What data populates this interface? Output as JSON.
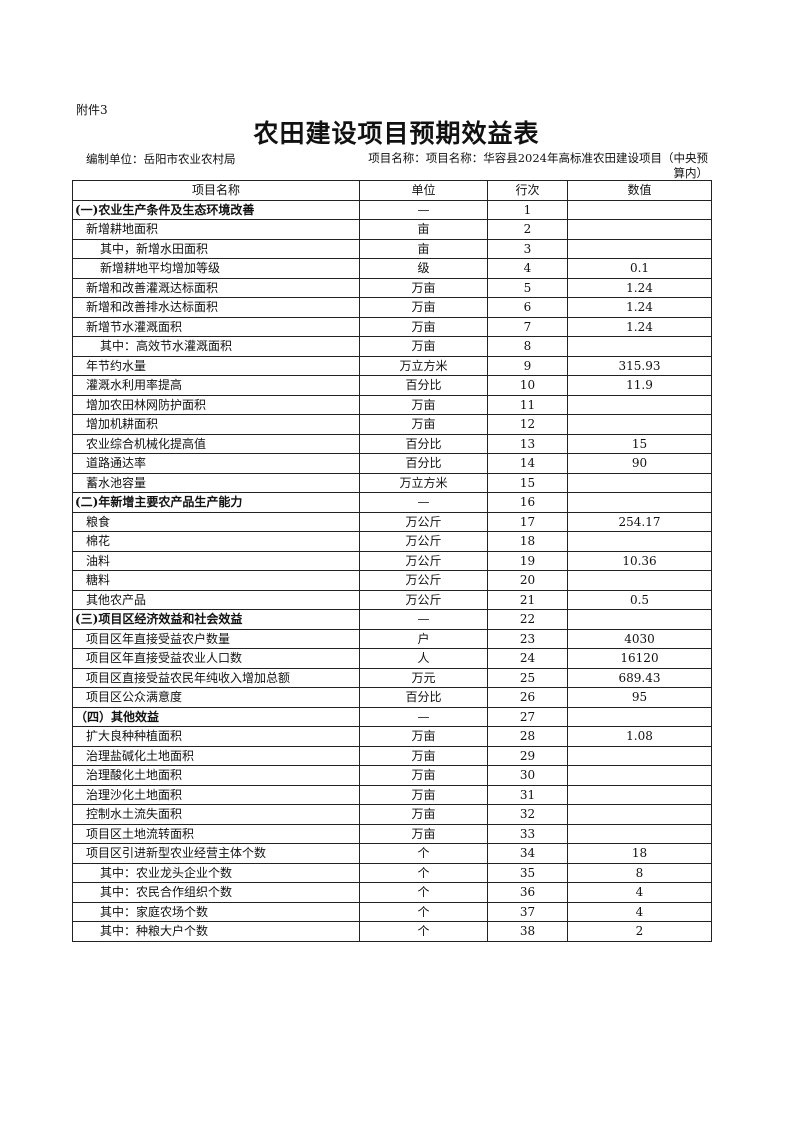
{
  "attachment": "附件3",
  "title": "农田建设项目预期效益表",
  "compiling_unit": "编制单位：岳阳市农业农村局",
  "project_name": "项目名称：项目名称：华容县2024年高标准农田建设项目（中央预算内）",
  "columns": [
    "项目名称",
    "单位",
    "行次",
    "数值"
  ],
  "rows": [
    {
      "name": "(一)农业生产条件及生态环境改善",
      "unit": "—",
      "no": "1",
      "value": "",
      "level": 0
    },
    {
      "name": "新增耕地面积",
      "unit": "亩",
      "no": "2",
      "value": "",
      "level": 1
    },
    {
      "name": "其中，新增水田面积",
      "unit": "亩",
      "no": "3",
      "value": "",
      "level": 2
    },
    {
      "name": "新增耕地平均增加等级",
      "unit": "级",
      "no": "4",
      "value": "0.1",
      "level": 2
    },
    {
      "name": "新增和改善灌溉达标面积",
      "unit": "万亩",
      "no": "5",
      "value": "1.24",
      "level": 1
    },
    {
      "name": "新增和改善排水达标面积",
      "unit": "万亩",
      "no": "6",
      "value": "1.24",
      "level": 1
    },
    {
      "name": "新增节水灌溉面积",
      "unit": "万亩",
      "no": "7",
      "value": "1.24",
      "level": 1
    },
    {
      "name": "其中：高效节水灌溉面积",
      "unit": "万亩",
      "no": "8",
      "value": "",
      "level": 2
    },
    {
      "name": "年节约水量",
      "unit": "万立方米",
      "no": "9",
      "value": "315.93",
      "level": 1
    },
    {
      "name": "灌溉水利用率提高",
      "unit": "百分比",
      "no": "10",
      "value": "11.9",
      "level": 1
    },
    {
      "name": "增加农田林网防护面积",
      "unit": "万亩",
      "no": "11",
      "value": "",
      "level": 1
    },
    {
      "name": "增加机耕面积",
      "unit": "万亩",
      "no": "12",
      "value": "",
      "level": 1
    },
    {
      "name": "农业综合机械化提高值",
      "unit": "百分比",
      "no": "13",
      "value": "15",
      "level": 1
    },
    {
      "name": "道路通达率",
      "unit": "百分比",
      "no": "14",
      "value": "90",
      "level": 1
    },
    {
      "name": "蓄水池容量",
      "unit": "万立方米",
      "no": "15",
      "value": "",
      "level": 1
    },
    {
      "name": "(二)年新增主要农产品生产能力",
      "unit": "—",
      "no": "16",
      "value": "",
      "level": 0
    },
    {
      "name": "粮食",
      "unit": "万公斤",
      "no": "17",
      "value": "254.17",
      "level": 1
    },
    {
      "name": "棉花",
      "unit": "万公斤",
      "no": "18",
      "value": "",
      "level": 1
    },
    {
      "name": "油料",
      "unit": "万公斤",
      "no": "19",
      "value": "10.36",
      "level": 1
    },
    {
      "name": "糖料",
      "unit": "万公斤",
      "no": "20",
      "value": "",
      "level": 1
    },
    {
      "name": "其他农产品",
      "unit": "万公斤",
      "no": "21",
      "value": "0.5",
      "level": 1
    },
    {
      "name": "(三)项目区经济效益和社会效益",
      "unit": "—",
      "no": "22",
      "value": "",
      "level": 0
    },
    {
      "name": "项目区年直接受益农户数量",
      "unit": "户",
      "no": "23",
      "value": "4030",
      "level": 1
    },
    {
      "name": "项目区年直接受益农业人口数",
      "unit": "人",
      "no": "24",
      "value": "16120",
      "level": 1
    },
    {
      "name": "项目区直接受益农民年纯收入增加总额",
      "unit": "万元",
      "no": "25",
      "value": "689.43",
      "level": 1
    },
    {
      "name": "项目区公众满意度",
      "unit": "百分比",
      "no": "26",
      "value": "95",
      "level": 1
    },
    {
      "name": "（四）其他效益",
      "unit": "—",
      "no": "27",
      "value": "",
      "level": 0
    },
    {
      "name": "扩大良种种植面积",
      "unit": "万亩",
      "no": "28",
      "value": "1.08",
      "level": 1
    },
    {
      "name": "治理盐碱化土地面积",
      "unit": "万亩",
      "no": "29",
      "value": "",
      "level": 1
    },
    {
      "name": "治理酸化土地面积",
      "unit": "万亩",
      "no": "30",
      "value": "",
      "level": 1
    },
    {
      "name": "治理沙化土地面积",
      "unit": "万亩",
      "no": "31",
      "value": "",
      "level": 1
    },
    {
      "name": "控制水土流失面积",
      "unit": "万亩",
      "no": "32",
      "value": "",
      "level": 1
    },
    {
      "name": "项目区土地流转面积",
      "unit": "万亩",
      "no": "33",
      "value": "",
      "level": 1
    },
    {
      "name": "项目区引进新型农业经营主体个数",
      "unit": "个",
      "no": "34",
      "value": "18",
      "level": 1
    },
    {
      "name": "其中：农业龙头企业个数",
      "unit": "个",
      "no": "35",
      "value": "8",
      "level": 2
    },
    {
      "name": "其中：农民合作组织个数",
      "unit": "个",
      "no": "36",
      "value": "4",
      "level": 2
    },
    {
      "name": "其中：家庭农场个数",
      "unit": "个",
      "no": "37",
      "value": "4",
      "level": 2
    },
    {
      "name": "其中：种粮大户个数",
      "unit": "个",
      "no": "38",
      "value": "2",
      "level": 2
    }
  ]
}
